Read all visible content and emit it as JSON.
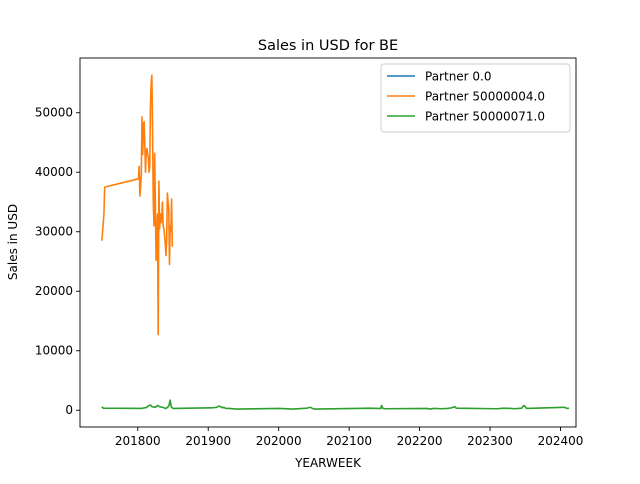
{
  "chart_data": {
    "type": "line",
    "title": "Sales in USD for BE",
    "xlabel": "YEARWEEK",
    "ylabel": "Sales in USD",
    "xlim": [
      201718,
      202422
    ],
    "ylim": [
      -2816,
      59200
    ],
    "xticks": [
      201800,
      201900,
      202000,
      202100,
      202200,
      202300,
      202400
    ],
    "yticks": [
      0,
      10000,
      20000,
      30000,
      40000,
      50000
    ],
    "grid": false,
    "legend_position": "top-right",
    "series": [
      {
        "name": "Partner 0.0",
        "color": "#1f77b4",
        "x": [],
        "y": []
      },
      {
        "name": "Partner 50000004.0",
        "color": "#ff7f0e",
        "x": [
          201749,
          201752,
          201753,
          201801,
          201802,
          201803,
          201804,
          201805,
          201806,
          201807,
          201808,
          201809,
          201810,
          201811,
          201812,
          201813,
          201814,
          201815,
          201816,
          201817,
          201818,
          201819,
          201820,
          201821,
          201822,
          201823,
          201824,
          201825,
          201826,
          201827,
          201828,
          201829,
          201830,
          201831,
          201832,
          201833,
          201834,
          201835,
          201836,
          201837,
          201838,
          201839,
          201840,
          201841,
          201842,
          201843,
          201844,
          201845,
          201846,
          201847,
          201848,
          201849
        ],
        "y": [
          28500,
          33000,
          37500,
          38900,
          41000,
          36000,
          37500,
          39500,
          49300,
          43000,
          47800,
          48500,
          44500,
          40000,
          43500,
          44000,
          43000,
          42500,
          40000,
          41000,
          51000,
          55000,
          56300,
          47000,
          35000,
          31000,
          43200,
          34000,
          25200,
          30000,
          33000,
          12700,
          38500,
          30500,
          33000,
          31500,
          32000,
          35000,
          31000,
          30500,
          29500,
          28000,
          26000,
          28500,
          36500,
          35000,
          34000,
          24500,
          31000,
          30000,
          35500,
          27500
        ]
      },
      {
        "name": "Partner 50000071.0",
        "color": "#2ca02c",
        "x": [
          201749,
          201751,
          201805,
          201812,
          201815,
          201818,
          201820,
          201825,
          201828,
          201831,
          201835,
          201840,
          201844,
          201846,
          201847,
          201848,
          201850,
          201905,
          201912,
          201915,
          201917,
          201918,
          201920,
          201922,
          201925,
          201930,
          201940,
          202001,
          202020,
          202040,
          202045,
          202048,
          202051,
          202110,
          202130,
          202140,
          202145,
          202146,
          202148,
          202151,
          202210,
          202215,
          202220,
          202222,
          202230,
          202240,
          202245,
          202250,
          202252,
          202310,
          202320,
          202330,
          202335,
          202340,
          202345,
          202348,
          202350,
          202352,
          202405,
          202410,
          202412
        ],
        "y": [
          600,
          350,
          300,
          450,
          700,
          900,
          600,
          500,
          800,
          600,
          500,
          300,
          700,
          1700,
          900,
          500,
          300,
          400,
          500,
          700,
          600,
          600,
          400,
          500,
          300,
          300,
          200,
          300,
          200,
          350,
          500,
          300,
          200,
          300,
          350,
          300,
          300,
          800,
          300,
          250,
          300,
          200,
          300,
          300,
          250,
          300,
          400,
          600,
          350,
          250,
          350,
          300,
          250,
          300,
          350,
          800,
          600,
          300,
          500,
          300,
          350
        ]
      }
    ]
  }
}
